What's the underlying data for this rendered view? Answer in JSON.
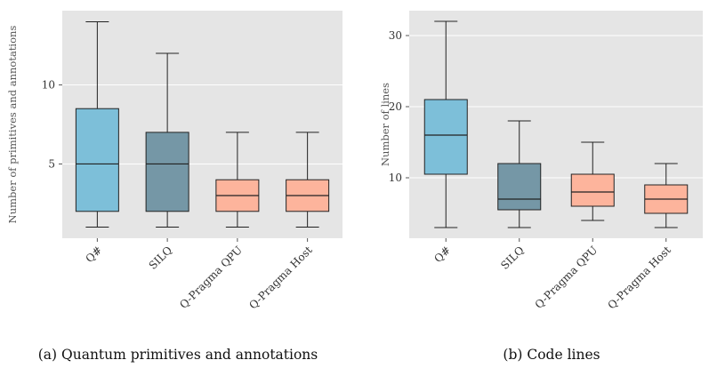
{
  "chart_data": [
    {
      "type": "box",
      "caption": "(a) Quantum primitives and annotations",
      "ylabel": "Number of primitives and annotations",
      "ylim": [
        0.3,
        14.7
      ],
      "yticks": [
        5,
        10
      ],
      "grid": true,
      "categories": [
        "Q#",
        "SILQ",
        "Q-Pragma QPU",
        "Q-Pragma Host"
      ],
      "colors": [
        "#7dbfd9",
        "#7597a6",
        "#fdb49c",
        "#fdb49c"
      ],
      "boxes": [
        {
          "min": 1,
          "q1": 2,
          "median": 5,
          "q3": 8.5,
          "max": 14
        },
        {
          "min": 1,
          "q1": 2,
          "median": 5,
          "q3": 7,
          "max": 12
        },
        {
          "min": 1,
          "q1": 2,
          "median": 3,
          "q3": 4,
          "max": 7
        },
        {
          "min": 1,
          "q1": 2,
          "median": 3,
          "q3": 4,
          "max": 7
        }
      ]
    },
    {
      "type": "box",
      "caption": "(b) Code lines",
      "ylabel": "Number of lines",
      "ylim": [
        1.5,
        33.5
      ],
      "yticks": [
        10,
        20,
        30
      ],
      "grid": true,
      "categories": [
        "Q#",
        "SILQ",
        "Q-Pragma QPU",
        "Q-Pragma Host"
      ],
      "colors": [
        "#7dbfd9",
        "#7597a6",
        "#fdb49c",
        "#fdb49c"
      ],
      "boxes": [
        {
          "min": 3,
          "q1": 10.5,
          "median": 16,
          "q3": 21,
          "max": 32
        },
        {
          "min": 3,
          "q1": 5.5,
          "median": 7,
          "q3": 12,
          "max": 18
        },
        {
          "min": 4,
          "q1": 6,
          "median": 8,
          "q3": 10.5,
          "max": 15
        },
        {
          "min": 3,
          "q1": 5,
          "median": 7,
          "q3": 9,
          "max": 12
        }
      ]
    }
  ]
}
